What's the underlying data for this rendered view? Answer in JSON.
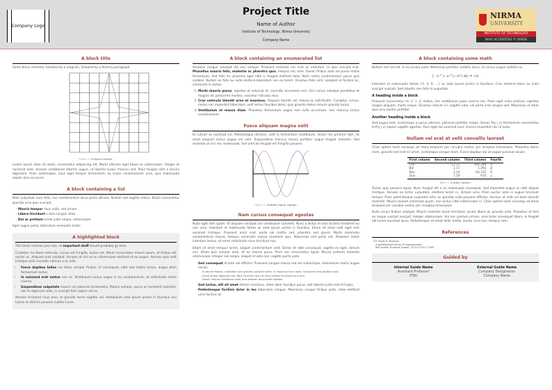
{
  "header": {
    "logo_text": "Company Logo",
    "title": "Project Title",
    "author": "Name of Author",
    "institute": "Institute of Technology, Nirma University",
    "company": "Company Name",
    "uni_logo": {
      "name": "NIRMA",
      "sub": "UNIVERSITY",
      "red": "INSTITUTE OF TECHNOLOGY",
      "black": "NAAC ACCREDITED 'A' GRADE"
    }
  },
  "col1": {
    "b1": {
      "title": "A block title",
      "intro": "Some block contents, followed by a diagram, followed by a dummy paragraph.",
      "caption_label": "Figure 1:",
      "caption": "A figure caption.",
      "para": "Lorem ipsum dolor sit amet, consectetur adipiscing elit. Morbi ultricies eget libero ac ullamcorper. Integer et euismod ante. Aenean vestibulum lobortis augue, ut lobortis turpis rhoncus sed. Proin feugiat nibh a lacinia dignissim. Proin scelerisque, risus eget tempor fermentum, ex turpis condimentum urna, quis malesuada sapien arcu eu purus."
    },
    "b2": {
      "title": "A block containing a list",
      "intro": "Nam vulputate nunc felis, non condimentum lacus porta ultrices. Nullam sed sagittis metus. Etiam consectetur gravida urna quis suscipit.",
      "items": [
        {
          "b": "Mauris tempor",
          "t": " risus nulla, sed ornare"
        },
        {
          "b": "Libero tincidunt",
          "t": " a duis congue vitae"
        },
        {
          "b": "Dui ac pretium",
          "t": " morbi justo neque, ullamcorper"
        }
      ],
      "outro": "Eget augue porta, bibendum venenatis tortor."
    },
    "b3": {
      "title": "A highlighted block",
      "p1a": "This block catches your eye, so ",
      "p1b": "important stuff",
      "p1c": " should probably go here.",
      "p2": "Curabitur eu libero vehicula, cursus est fringilla, luctus est. Morbi consectetur mauris quam, at finibus elit auctor ac. Aliquam erat volutpat. Aenean at nisl ut ex ullamcorper eleifend et eu augue. Aenean quis velit tristique odio convallis ultrices a ac odio.",
      "items": [
        {
          "b": "Fusce dapibus tellus",
          "t": " vel tellus semper finibus. In consequat, nibh sed mattis luctus, augue diam fermentum lectus."
        },
        {
          "b": "In euismod erat metus",
          "t": " non ex. Vestibulum luctus augue in mi condimentum, at sollicitudin lorem viverra."
        },
        {
          "b": "Suspendisse vulputate",
          "t": " mauris vel placerat consectetur. Mauris semper, purus ac hendrerit molestie, elit mi dignissim odio, in suscipit felis sapien vel ex."
        }
      ],
      "p3": "Aenean tincidunt risus eros, at gravida lorem sagittis vel. Vestibulum ante ipsum primis in faucibus orci luctus et ultrices posuere cubilia Curae."
    }
  },
  "col2": {
    "b1": {
      "title": "A block containing an enumerated list",
      "pa": "Vivamus congue volutpat elit non semper. Praesent molestie nec erat ac interdum. In quis suscipit erat. ",
      "pb": "Phasellus mauris felis, molestie ac pharetra quis",
      "pc": ", tempus nec ante. Donec finibus ante vel purus mollis fermentum. Sed felis mi, pharetra eget nibh a, feugiat eleifend dolor. Nam mollis condimentum purus quis sodales. Nullam eu felis eu nulla eleifend bibendum nec eu lorem. Vivamus felis velit, volutpat ut facilisis ac, commodo in metus.",
      "items": [
        {
          "b": "Morbi mauris purus",
          "t": ", egestas at vehicula et, convallis accumsan orci. Orci varius natoque penatibus et magnis dis parturient montes, nascetur ridiculus mus."
        },
        {
          "b": "Cras vehicula blandit urna ut maximus.",
          "t": " Aliquam blandit nec massa ac sollicitudin. Curabitur cursus, metus nec imperdiet bibendum, velit lectus faucibus dolor, quis gravida metus mauris gravida turpis."
        },
        {
          "b": "Vestibulum et massa diam",
          "t": ". Phasellus fermentum augue non nulla accumsan, non rhoncus lectus condimentum."
        }
      ]
    },
    "b2": {
      "title": "Fusce aliquam magna velit",
      "para": "Et rutrum ex euismod vel. Pellentesque ultricies, velit in fermentum vestibulum, lectus nisi pretium nibh, sit amet aliquam lectus augue vel velit. Suspendisse rhoncus massa porttitor augue feugiat molestie. Sed molestie ut orci nec malesuada. Sed ultricies feugiat est fringilla posuere.",
      "caption_label": "Figure 2:",
      "caption": "Another figure caption.",
      "colors": {
        "sin": "#c9848a",
        "cos": "#7c7cc0"
      }
    },
    "b3": {
      "title": "Nam cursus consequat egestas",
      "p1": "Nulla eget sem quam. Ut aliquam volutpat nisi vestibulum convallis. Nunc a lectus et eros facilisis hendrerit eu non urna. Interdum et malesuada fames ac ante ipsum primis in faucibus. Etiam sit amet velit eget sem euismod tristique. Praesent enim erat, porta vel mattis sed, pharetra sed ipsum. Morbi commodo condimentum massa, tempus venenatis massa hendrerit quis. Maecenas sed porta est. Praesent mollis interdum lectus, sit amet sollicitudin risus tincidunt non.",
      "p2": "Etiam sit amet tempus lorem, aliquet condimentum velit. Donec et nibh consequat, sagittis ex eget, dictum orci. Etiam quis semper ante. Ut eu mauris purus. Proin nec consectetur ligula. Mauris pretium molestie ullamcorper. Integer nisi neque, aliquet et odio non, sagittis porta justo.",
      "items": [
        {
          "b": "Sed consequat",
          "t": " id ante vel efficitur. Praesent congue massa sed est scelerisque, elementum mollis augue iaculis."
        },
        {
          "b": "Sed luctus, elit sit amet",
          "t": " dictum maximus, diam dolor faucibus purus, sed lobortis justo erat id turpis."
        },
        {
          "b": "Pellentesque facilisis dolor in leo",
          "t": " bibendum congue. Maecenas congue finibus justo, vitae eleifend urna facilisis at."
        }
      ],
      "subitems": [
        "In sed ert finibus, vulputate nunc gravida, pulvinar lorem. In maximus nunc dolor, sed auctor eros porttitor quis.",
        "Fusce ornare dignissim nisl. Nam sit amet risus vel lacus tempor tincidunt eu a arcu.",
        "Donec rhoncus vestibulum erat, quis aliquam leo gravida egestas."
      ]
    }
  },
  "col3": {
    "b1": {
      "title": "A block containing some math",
      "p1": "Nullam non est elit. In eu ornare justo. Maecenas porttitor sodales lacus, ut cursus augue sodales ac.",
      "math": "∫₋∞^∞ e^(−x²) dx = √π",
      "p2": "Interdum et malesuada fames {1, 4, 9, …} ac ante ipsum primis in faucibus. Cras eleifend dolor eu nulla suscipit suscipit. Sed lobortis non felis id vulputate.",
      "h1": "A heading inside a block",
      "p3": "Praesent consectetur mi x² + y² metus, nec vestibulum justo viverra nec. Proin eget nulla pretium, egestas magna aliquam, mollis neque. Vivamus dictum uᵀv sagittis odio, vel porta erat congue sed. Maecenas ut dolor quis arcu auctor porttitor.",
      "h2": "Another heading inside a block",
      "p4": "Sed augue erat, scelerisque a purus ultricies, placerat porttitor neque. Donec P(y | x) fermentum consectetur ∇ₓP(y | x) sapien sagittis egestas. Duis eget leo euismod nunc viverra imperdiet nec id justo."
    },
    "b2": {
      "title": "Nullam vel erat at velit convallis laoreet",
      "p1": "Class aptent taciti sociosqu ad litora torquent per conubia nostra, per inceptos himenaeos. Phasellus libero enim, gravida sed erat sit amet, scelerisque congue diam. Fusce dapibus dui ut augue pulvinar iaculis.",
      "table": {
        "headers": [
          "First column",
          "Second column",
          "Third column",
          "Fourth"
        ],
        "rows": [
          [
            "Foo",
            "13.37",
            "384,394",
            "α"
          ],
          [
            "Bar",
            "2.17",
            "1,392",
            "β"
          ],
          [
            "Baz",
            "3.14",
            "83,742",
            "δ"
          ],
          [
            "Qux",
            "7.59",
            "974",
            "γ"
          ]
        ]
      },
      "caption_label": "Table 1:",
      "caption": "A table caption.",
      "p2": "Donec quis posuere ligula. Nunc feugiat elit a mi malesuada consequat. Sed imperdiet augue ac nibh aliquet tristique. Aenean eu tortor vulputate, eleifend lorem in, dictum urna. Proin auctor ante in augue tincidunt tempor. Proin pellentesque vulputate odio, ac gravida nulla posuere efficitur. Aenean at velit vel dolor blandit molestie. Mauris laoreet commodo quam, non luctus nibh ullamcorper in. Class aptent taciti sociosqu ad litora torquent per conubia nostra, per inceptos himenaeos.",
      "p3": "Nulla varius finibus volutpat. Mauris molestie lorem tincidunt, iaculis libero at, gravida ante. Phasellus at felis eu neque suscipit suscipit. Integer ullamcorper, dui nec pretium ornare, urna dolor consequat libero, in feugiat elit lorem euismod lacus. Pellentesque sit amet dolor mollis, auctor urna non, tempus sem."
    },
    "refs": {
      "title": "References",
      "ref1_num": "[1]",
      "ref1_author": "Claude E. Shannon.",
      "ref1_title": "A mathematical theory of communication.",
      "ref1_journal": "Bell System Technical Journal, 27(3):379–423, 1948."
    },
    "guide": {
      "title": "Guided by",
      "internal": {
        "name": "Internal Guide Name",
        "designation": "Assistant Professor",
        "org": "ITNU"
      },
      "external": {
        "name": "External Guide Name",
        "designation": "Company Designation",
        "org": "Company Name"
      }
    }
  },
  "colors": {
    "accent": "#a04843",
    "header_bg": "#dcdcdc",
    "highlight_bg": "#efefef"
  }
}
